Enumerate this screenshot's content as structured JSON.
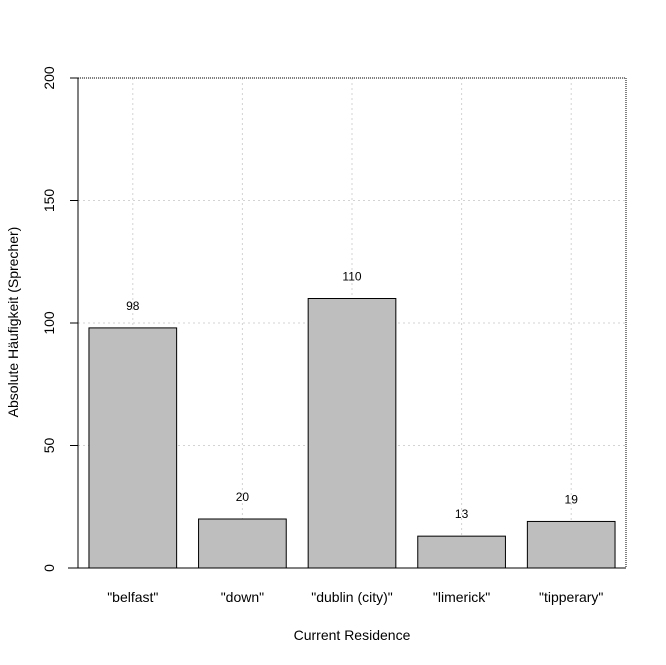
{
  "chart_data": {
    "type": "bar",
    "title": "",
    "xlabel": "Current Residence",
    "ylabel": "Absolute Häufigkeit (Sprecher)",
    "categories": [
      "\"belfast\"",
      "\"down\"",
      "\"dublin (city)\"",
      "\"limerick\"",
      "\"tipperary\""
    ],
    "values": [
      98,
      20,
      110,
      13,
      19
    ],
    "data_labels": [
      "98",
      "20",
      "110",
      "13",
      "19"
    ],
    "ylim": [
      0,
      200
    ],
    "yticks": [
      0,
      50,
      100,
      150,
      200
    ],
    "grid": true,
    "grid_style": "dotted",
    "legend": "none",
    "colors": {
      "bar_fill": "#bebebe",
      "bar_stroke": "#000000",
      "grid": "#d3d3d3",
      "axis": "#000000"
    }
  }
}
